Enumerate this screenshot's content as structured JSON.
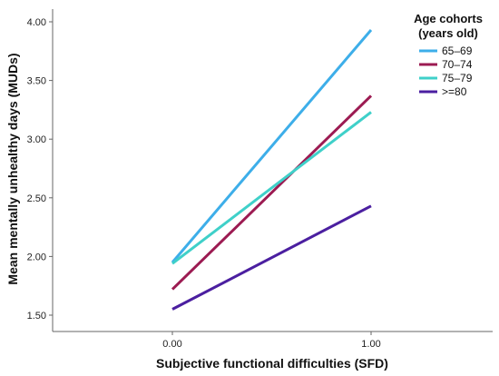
{
  "chart_data": {
    "type": "line",
    "xlabel": "Subjective functional difficulties (SFD)",
    "ylabel": "Mean mentally unhealthy days (MUDs)",
    "x": [
      0,
      1
    ],
    "x_tick_labels": [
      "0.00",
      "1.00"
    ],
    "y_tick_labels": [
      "1.50",
      "2.00",
      "2.50",
      "3.00",
      "3.50",
      "4.00"
    ],
    "ylim": [
      1.5,
      4.0
    ],
    "grid": false,
    "legend": {
      "title_line1": "Age cohorts",
      "title_line2": "(years old)",
      "placement": "top-right"
    },
    "series": [
      {
        "name": "65–69",
        "color": "#3daee9",
        "values": [
          1.95,
          3.93
        ]
      },
      {
        "name": "70–74",
        "color": "#9c1b52",
        "values": [
          1.72,
          3.37
        ]
      },
      {
        "name": "75–79",
        "color": "#3fd0c9",
        "values": [
          1.94,
          3.23
        ]
      },
      {
        "name": ">=80",
        "color": "#4b1fa0",
        "values": [
          1.55,
          2.43
        ]
      }
    ]
  }
}
